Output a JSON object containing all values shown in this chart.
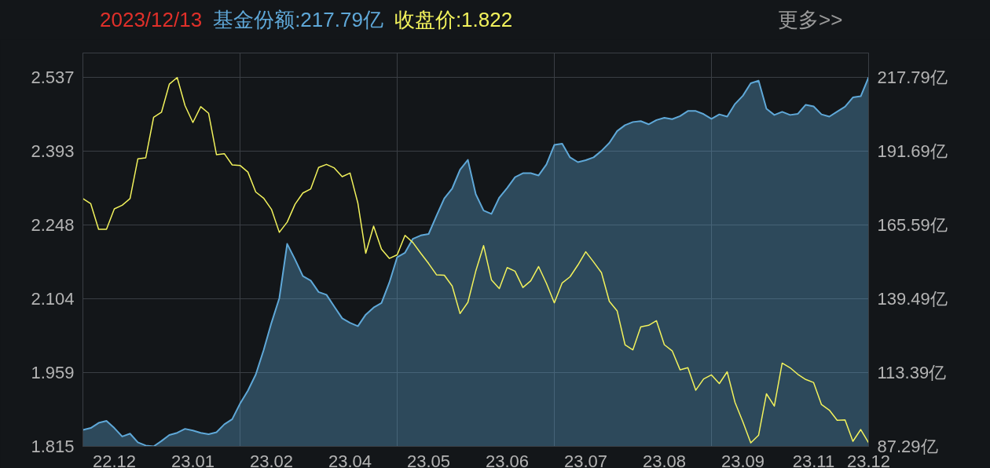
{
  "chart_data": {
    "type": "line",
    "title": "2023/12/13",
    "annotations": [
      "基金份额:217.79亿",
      "收盘价:1.822",
      "更多>>"
    ],
    "categories": [
      null,
      null,
      null,
      null,
      "22.12",
      null,
      null,
      null,
      null,
      null,
      null,
      null,
      null,
      null,
      "23.01",
      null,
      null,
      null,
      null,
      null,
      null,
      null,
      null,
      null,
      "23.02",
      null,
      null,
      null,
      null,
      null,
      null,
      null,
      null,
      null,
      "23.04",
      null,
      null,
      null,
      null,
      null,
      null,
      null,
      null,
      null,
      "23.05",
      null,
      null,
      null,
      null,
      null,
      null,
      null,
      null,
      null,
      "23.06",
      null,
      null,
      null,
      null,
      null,
      null,
      null,
      null,
      null,
      "23.07",
      null,
      null,
      null,
      null,
      null,
      null,
      null,
      null,
      null,
      "23.08",
      null,
      null,
      null,
      null,
      null,
      null,
      null,
      null,
      null,
      "23.09",
      null,
      null,
      null,
      null,
      null,
      null,
      null,
      null,
      "23.11",
      null,
      null,
      null,
      null,
      null,
      null,
      "23.12"
    ],
    "ylim": [
      1.815,
      2.585
    ],
    "yticks": [
      1.815,
      1.959,
      2.104,
      2.248,
      2.393,
      2.537
    ],
    "y2lim": [
      87.29,
      226.4
    ],
    "y2ticks": [
      {
        "value": 87.29,
        "label": "87.29亿"
      },
      {
        "value": 113.39,
        "label": "113.39亿"
      },
      {
        "value": 139.49,
        "label": "139.49亿"
      },
      {
        "value": 165.59,
        "label": "165.59亿"
      },
      {
        "value": 191.69,
        "label": "191.69亿"
      },
      {
        "value": 217.79,
        "label": "217.79亿"
      }
    ],
    "grid": true,
    "series": [
      {
        "type": "area",
        "axis": "y2",
        "color": "#5fa8d8",
        "values": [
          93.1,
          93.8,
          95.6,
          96.3,
          93.8,
          90.8,
          91.8,
          88.7,
          87.6,
          87.3,
          89.2,
          91.3,
          92.1,
          93.5,
          92.9,
          92.1,
          91.6,
          92.3,
          95.1,
          96.9,
          102.4,
          107.0,
          112.7,
          121.3,
          131.0,
          139.7,
          158.9,
          153.4,
          147.5,
          145.9,
          141.9,
          140.9,
          136.7,
          132.6,
          131.0,
          129.8,
          133.9,
          136.4,
          138.0,
          145.2,
          154.2,
          155.8,
          160.7,
          161.9,
          162.4,
          168.8,
          175.0,
          178.5,
          185.1,
          188.6,
          176.5,
          170.7,
          169.5,
          175.3,
          178.7,
          182.5,
          183.9,
          183.9,
          183.1,
          187.0,
          193.9,
          194.3,
          189.5,
          187.8,
          188.5,
          189.5,
          191.8,
          194.6,
          198.8,
          200.9,
          202.0,
          202.3,
          201.2,
          202.7,
          203.5,
          203.0,
          204.1,
          205.9,
          205.9,
          204.8,
          203.1,
          204.7,
          203.9,
          208.4,
          211.3,
          215.7,
          216.6,
          206.7,
          204.5,
          205.6,
          204.5,
          204.9,
          208.1,
          207.5,
          204.7,
          203.9,
          205.7,
          207.4,
          210.7,
          211.1,
          217.8
        ]
      },
      {
        "color": "#f2f25c",
        "values": [
          2.3,
          2.29,
          2.24,
          2.24,
          2.28,
          2.287,
          2.3,
          2.378,
          2.38,
          2.459,
          2.469,
          2.524,
          2.537,
          2.482,
          2.449,
          2.48,
          2.467,
          2.386,
          2.388,
          2.366,
          2.365,
          2.352,
          2.313,
          2.301,
          2.279,
          2.234,
          2.254,
          2.289,
          2.311,
          2.319,
          2.361,
          2.367,
          2.36,
          2.343,
          2.35,
          2.291,
          2.193,
          2.246,
          2.201,
          2.183,
          2.19,
          2.228,
          2.214,
          2.193,
          2.173,
          2.151,
          2.15,
          2.129,
          2.075,
          2.097,
          2.158,
          2.208,
          2.141,
          2.124,
          2.165,
          2.158,
          2.126,
          2.139,
          2.167,
          2.134,
          2.096,
          2.135,
          2.147,
          2.17,
          2.196,
          2.176,
          2.155,
          2.099,
          2.08,
          2.014,
          2.004,
          2.049,
          2.052,
          2.061,
          2.014,
          2.002,
          1.965,
          1.969,
          1.925,
          1.947,
          1.955,
          1.938,
          1.961,
          1.901,
          1.863,
          1.822,
          1.837,
          1.918,
          1.894,
          1.978,
          1.969,
          1.956,
          1.946,
          1.94,
          1.897,
          1.886,
          1.866,
          1.867,
          1.825,
          1.848,
          1.822
        ]
      }
    ]
  }
}
